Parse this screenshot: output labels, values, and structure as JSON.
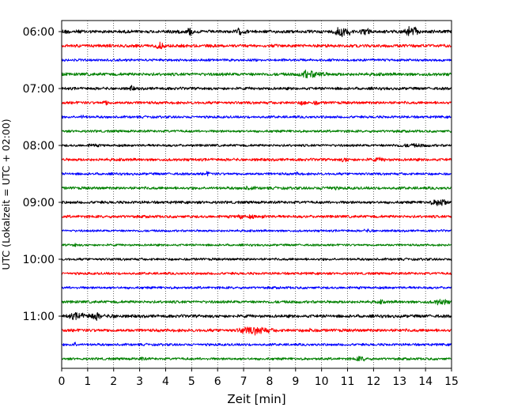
{
  "chart_data": {
    "type": "line",
    "title": "",
    "xlabel": "Zeit  [min]",
    "ylabel": "UTC (Lokalzeit = UTC + 02:00)",
    "xlim": [
      0,
      15
    ],
    "x_ticks": [
      0,
      1,
      2,
      3,
      4,
      5,
      6,
      7,
      8,
      9,
      10,
      11,
      12,
      13,
      14,
      15
    ],
    "y_ticks": [
      "06:00",
      "07:00",
      "08:00",
      "09:00",
      "10:00",
      "11:00"
    ],
    "trace_start": "06:00",
    "trace_interval_minutes": 15,
    "grid": {
      "x": true,
      "y": false,
      "style": "dotted"
    },
    "colors": [
      "#000000",
      "#ff0000",
      "#0000ff",
      "#008000"
    ],
    "traces": [
      {
        "start": "06:00",
        "color": "#000000",
        "amplitude": 1.0,
        "events": [
          [
            0.0,
            0.5,
            0.7
          ],
          [
            4.3,
            0.3,
            0.3
          ],
          [
            4.9,
            2.5,
            0.06
          ],
          [
            5.0,
            2.0,
            0.05
          ],
          [
            6.8,
            1.6,
            0.1
          ],
          [
            7.0,
            0.8,
            0.1
          ],
          [
            10.7,
            3.2,
            0.2
          ],
          [
            11.1,
            1.2,
            0.15
          ],
          [
            11.6,
            1.6,
            0.12
          ],
          [
            11.8,
            1.8,
            0.05
          ],
          [
            13.4,
            2.4,
            0.2
          ],
          [
            13.6,
            1.4,
            0.1
          ]
        ]
      },
      {
        "start": "06:15",
        "color": "#ff0000",
        "amplitude": 1.0,
        "events": [
          [
            3.8,
            1.5,
            0.15
          ]
        ]
      },
      {
        "start": "06:30",
        "color": "#0000ff",
        "amplitude": 0.8,
        "events": []
      },
      {
        "start": "06:45",
        "color": "#008000",
        "amplitude": 1.0,
        "events": [
          [
            9.4,
            2.0,
            0.2
          ],
          [
            9.7,
            1.2,
            0.15
          ],
          [
            10.0,
            1.0,
            0.15
          ]
        ]
      },
      {
        "start": "07:00",
        "color": "#000000",
        "amplitude": 0.9,
        "events": [
          [
            2.7,
            1.2,
            0.08
          ]
        ]
      },
      {
        "start": "07:15",
        "color": "#ff0000",
        "amplitude": 0.9,
        "events": [
          [
            1.7,
            1.0,
            0.1
          ],
          [
            9.3,
            1.0,
            0.12
          ],
          [
            9.8,
            0.8,
            0.1
          ]
        ]
      },
      {
        "start": "07:30",
        "color": "#0000ff",
        "amplitude": 0.8,
        "events": [
          [
            0.8,
            0.9,
            0.06
          ]
        ]
      },
      {
        "start": "07:45",
        "color": "#008000",
        "amplitude": 0.8,
        "events": []
      },
      {
        "start": "08:00",
        "color": "#000000",
        "amplitude": 0.8,
        "events": [
          [
            1.2,
            0.6,
            0.15
          ],
          [
            13.5,
            0.5,
            0.6
          ]
        ]
      },
      {
        "start": "08:15",
        "color": "#ff0000",
        "amplitude": 0.9,
        "events": [
          [
            10.9,
            1.0,
            0.12
          ],
          [
            12.2,
            0.5,
            0.3
          ]
        ]
      },
      {
        "start": "08:30",
        "color": "#0000ff",
        "amplitude": 0.8,
        "events": [
          [
            5.6,
            0.8,
            0.1
          ],
          [
            9.1,
            0.6,
            0.1
          ]
        ]
      },
      {
        "start": "08:45",
        "color": "#008000",
        "amplitude": 0.9,
        "events": [
          [
            7.2,
            0.6,
            0.2
          ],
          [
            10.3,
            0.5,
            0.3
          ]
        ]
      },
      {
        "start": "09:00",
        "color": "#000000",
        "amplitude": 0.9,
        "events": [
          [
            14.6,
            2.5,
            0.18
          ],
          [
            14.3,
            0.8,
            0.12
          ]
        ]
      },
      {
        "start": "09:15",
        "color": "#ff0000",
        "amplitude": 0.9,
        "events": [
          [
            6.9,
            1.6,
            0.1
          ],
          [
            7.3,
            0.8,
            0.1
          ],
          [
            7.8,
            0.6,
            0.1
          ]
        ]
      },
      {
        "start": "09:30",
        "color": "#0000ff",
        "amplitude": 0.7,
        "events": [
          [
            11.8,
            0.5,
            0.2
          ]
        ]
      },
      {
        "start": "09:45",
        "color": "#008000",
        "amplitude": 0.7,
        "events": [
          [
            0.5,
            0.8,
            0.08
          ]
        ]
      },
      {
        "start": "10:00",
        "color": "#000000",
        "amplitude": 0.8,
        "events": []
      },
      {
        "start": "10:15",
        "color": "#ff0000",
        "amplitude": 0.8,
        "events": []
      },
      {
        "start": "10:30",
        "color": "#0000ff",
        "amplitude": 0.8,
        "events": []
      },
      {
        "start": "10:45",
        "color": "#008000",
        "amplitude": 0.9,
        "events": [
          [
            14.6,
            1.3,
            0.25
          ],
          [
            12.3,
            0.6,
            0.1
          ]
        ]
      },
      {
        "start": "11:00",
        "color": "#000000",
        "amplitude": 1.0,
        "events": [
          [
            0.6,
            1.6,
            0.3
          ],
          [
            1.3,
            1.8,
            0.2
          ],
          [
            2.0,
            0.5,
            0.2
          ]
        ]
      },
      {
        "start": "11:15",
        "color": "#ff0000",
        "amplitude": 1.0,
        "events": [
          [
            7.5,
            1.8,
            0.45
          ],
          [
            9.6,
            0.9,
            0.1
          ],
          [
            7.0,
            0.8,
            0.2
          ]
        ]
      },
      {
        "start": "11:30",
        "color": "#0000ff",
        "amplitude": 0.8,
        "events": [
          [
            0.5,
            1.2,
            0.08
          ]
        ]
      },
      {
        "start": "11:45",
        "color": "#008000",
        "amplitude": 0.8,
        "events": [
          [
            11.5,
            1.1,
            0.2
          ],
          [
            3.1,
            0.6,
            0.1
          ]
        ]
      }
    ]
  }
}
